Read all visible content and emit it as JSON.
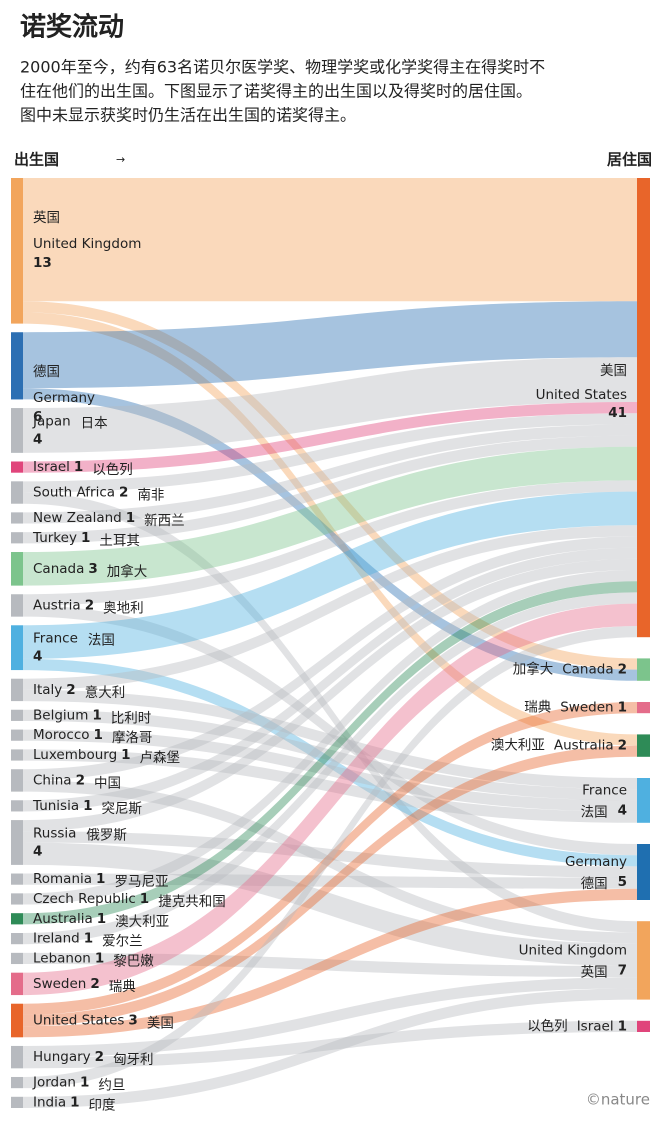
{
  "chart_data": {
    "type": "sankey",
    "title": "诺奖流动",
    "description": [
      "2000年至今，约有63名诺贝尔医学奖、物理学奖或化学奖得主在得奖时不",
      "住在他们的出生国。下图显示了诺奖得主的出生国以及得奖时的居住国。",
      "图中未显示获奖时仍生活在出生国的诺奖得主。"
    ],
    "source_label": "出生国",
    "arrow": "→",
    "target_label": "居住国",
    "credit": "©nature",
    "sources": [
      {
        "en": "United Kingdom",
        "zh": "英国",
        "value": 13,
        "color": "#f2a55c"
      },
      {
        "en": "Germany",
        "zh": "德国",
        "value": 6,
        "color": "#2c6fb3"
      },
      {
        "en": "Japan",
        "zh": "日本",
        "value": 4,
        "color": "#b7babf"
      },
      {
        "en": "Israel",
        "zh": "以色列",
        "value": 1,
        "color": "#e0457b"
      },
      {
        "en": "South Africa",
        "zh": "南非",
        "value": 2,
        "color": "#b7babf"
      },
      {
        "en": "New Zealand",
        "zh": "新西兰",
        "value": 1,
        "color": "#b7babf"
      },
      {
        "en": "Turkey",
        "zh": "土耳其",
        "value": 1,
        "color": "#b7babf"
      },
      {
        "en": "Canada",
        "zh": "加拿大",
        "value": 3,
        "color": "#7cc48c"
      },
      {
        "en": "Austria",
        "zh": "奥地利",
        "value": 2,
        "color": "#b7babf"
      },
      {
        "en": "France",
        "zh": "法国",
        "value": 4,
        "color": "#4fb0e0"
      },
      {
        "en": "Italy",
        "zh": "意大利",
        "value": 2,
        "color": "#b7babf"
      },
      {
        "en": "Belgium",
        "zh": "比利时",
        "value": 1,
        "color": "#b7babf"
      },
      {
        "en": "Morocco",
        "zh": "摩洛哥",
        "value": 1,
        "color": "#b7babf"
      },
      {
        "en": "Luxembourg",
        "zh": "卢森堡",
        "value": 1,
        "color": "#b7babf"
      },
      {
        "en": "China",
        "zh": "中国",
        "value": 2,
        "color": "#b7babf"
      },
      {
        "en": "Tunisia",
        "zh": "突尼斯",
        "value": 1,
        "color": "#b7babf"
      },
      {
        "en": "Russia",
        "zh": "俄罗斯",
        "value": 4,
        "color": "#b7babf"
      },
      {
        "en": "Romania",
        "zh": "罗马尼亚",
        "value": 1,
        "color": "#b7babf"
      },
      {
        "en": "Czech Republic",
        "zh": "捷克共和国",
        "value": 1,
        "color": "#b7babf"
      },
      {
        "en": "Australia",
        "zh": "澳大利亚",
        "value": 1,
        "color": "#2e8b57"
      },
      {
        "en": "Ireland",
        "zh": "爱尔兰",
        "value": 1,
        "color": "#b7babf"
      },
      {
        "en": "Lebanon",
        "zh": "黎巴嫩",
        "value": 1,
        "color": "#b7babf"
      },
      {
        "en": "Sweden",
        "zh": "瑞典",
        "value": 2,
        "color": "#e46c8a"
      },
      {
        "en": "United States",
        "zh": "美国",
        "value": 3,
        "color": "#e8652a"
      },
      {
        "en": "Hungary",
        "zh": "匈牙利",
        "value": 2,
        "color": "#b7babf"
      },
      {
        "en": "Jordan",
        "zh": "约旦",
        "value": 1,
        "color": "#b7babf"
      },
      {
        "en": "India",
        "zh": "印度",
        "value": 1,
        "color": "#b7babf"
      }
    ],
    "targets": [
      {
        "en": "United States",
        "zh": "美国",
        "value": 41,
        "color": "#e8652a"
      },
      {
        "en": "Canada",
        "zh": "加拿大",
        "value": 2,
        "color": "#7cc48c"
      },
      {
        "en": "Sweden",
        "zh": "瑞典",
        "value": 1,
        "color": "#e46c8a"
      },
      {
        "en": "Australia",
        "zh": "澳大利亚",
        "value": 2,
        "color": "#2e8b57"
      },
      {
        "en": "France",
        "zh": "法国",
        "value": 4,
        "color": "#4fb0e0"
      },
      {
        "en": "Germany",
        "zh": "德国",
        "value": 5,
        "color": "#1f6fb0"
      },
      {
        "en": "United Kingdom",
        "zh": "英国",
        "value": 7,
        "color": "#f2a55c"
      },
      {
        "en": "Israel",
        "zh": "以色列",
        "value": 1,
        "color": "#e0457b"
      }
    ],
    "links": [
      {
        "source": "United Kingdom",
        "target": "United States",
        "value": 11
      },
      {
        "source": "United Kingdom",
        "target": "Canada",
        "value": 1
      },
      {
        "source": "United Kingdom",
        "target": "Australia",
        "value": 1
      },
      {
        "source": "Germany",
        "target": "United States",
        "value": 5
      },
      {
        "source": "Germany",
        "target": "Canada",
        "value": 1
      },
      {
        "source": "Japan",
        "target": "United States",
        "value": 4
      },
      {
        "source": "Israel",
        "target": "United States",
        "value": 1
      },
      {
        "source": "South Africa",
        "target": "United States",
        "value": 1
      },
      {
        "source": "South Africa",
        "target": "United Kingdom",
        "value": 1
      },
      {
        "source": "New Zealand",
        "target": "United States",
        "value": 1
      },
      {
        "source": "Turkey",
        "target": "United States",
        "value": 1
      },
      {
        "source": "Canada",
        "target": "United States",
        "value": 3
      },
      {
        "source": "Austria",
        "target": "United States",
        "value": 1
      },
      {
        "source": "Austria",
        "target": "Germany",
        "value": 1
      },
      {
        "source": "France",
        "target": "United States",
        "value": 3
      },
      {
        "source": "France",
        "target": "Germany",
        "value": 1
      },
      {
        "source": "Italy",
        "target": "United States",
        "value": 1
      },
      {
        "source": "Italy",
        "target": "France",
        "value": 1
      },
      {
        "source": "Belgium",
        "target": "France",
        "value": 1
      },
      {
        "source": "Morocco",
        "target": "France",
        "value": 1
      },
      {
        "source": "Luxembourg",
        "target": "France",
        "value": 1
      },
      {
        "source": "China",
        "target": "United States",
        "value": 1
      },
      {
        "source": "China",
        "target": "United Kingdom",
        "value": 1
      },
      {
        "source": "Tunisia",
        "target": "United States",
        "value": 1
      },
      {
        "source": "Russia",
        "target": "United States",
        "value": 1
      },
      {
        "source": "Russia",
        "target": "Germany",
        "value": 1
      },
      {
        "source": "Russia",
        "target": "United Kingdom",
        "value": 2
      },
      {
        "source": "Romania",
        "target": "Germany",
        "value": 1
      },
      {
        "source": "Czech Republic",
        "target": "United States",
        "value": 1
      },
      {
        "source": "Australia",
        "target": "United States",
        "value": 1
      },
      {
        "source": "Ireland",
        "target": "United States",
        "value": 1
      },
      {
        "source": "Lebanon",
        "target": "United Kingdom",
        "value": 1
      },
      {
        "source": "Sweden",
        "target": "United States",
        "value": 2
      },
      {
        "source": "United States",
        "target": "Sweden",
        "value": 1
      },
      {
        "source": "United States",
        "target": "Australia",
        "value": 1
      },
      {
        "source": "United States",
        "target": "Germany",
        "value": 1
      },
      {
        "source": "Hungary",
        "target": "United Kingdom",
        "value": 1
      },
      {
        "source": "Hungary",
        "target": "Israel",
        "value": 1
      },
      {
        "source": "Jordan",
        "target": "United States",
        "value": 1
      },
      {
        "source": "India",
        "target": "United Kingdom",
        "value": 1
      }
    ]
  }
}
